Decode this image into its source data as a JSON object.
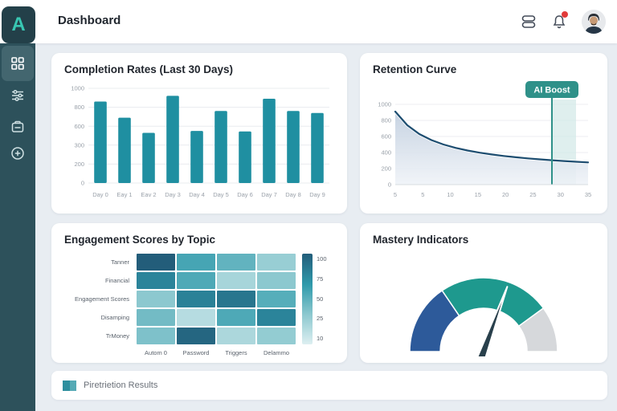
{
  "app": {
    "logo_letter": "A",
    "accent": "#1f8fa1",
    "sidebar_color": "#2d515b"
  },
  "header": {
    "title": "Dashboard",
    "icons": [
      {
        "name": "database-icon"
      },
      {
        "name": "bell-icon",
        "has_notification": true
      },
      {
        "name": "avatar"
      }
    ]
  },
  "sidebar": {
    "items": [
      {
        "name": "dashboard",
        "icon": "grid-icon",
        "active": true
      },
      {
        "name": "controls",
        "icon": "sliders-icon",
        "active": false
      },
      {
        "name": "documents",
        "icon": "document-icon",
        "active": false
      },
      {
        "name": "add",
        "icon": "plus-circle-icon",
        "active": false
      }
    ]
  },
  "cards": {
    "completion": {
      "title": "Completion Rates (Last 30 Days)"
    },
    "retention": {
      "title": "Retention Curve",
      "badge": "AI Boost"
    },
    "engagement": {
      "title": "Engagement Scores by Topic"
    },
    "mastery": {
      "title": "Mastery Indicators"
    }
  },
  "footer": {
    "label": "Piretrietion Results",
    "swatch_colors": [
      "#2e8f9e",
      "#55aab5"
    ]
  },
  "chart_data": [
    {
      "id": "completion",
      "type": "bar",
      "title": "Completion Rates (Last 30 Days)",
      "categories": [
        "Day 0",
        "Eay 1",
        "Eav 2",
        "Day 3",
        "Day 4",
        "Day 5",
        "Day 6",
        "Day 7",
        "Day 8",
        "Day 9"
      ],
      "values": [
        860,
        690,
        530,
        920,
        550,
        760,
        545,
        890,
        760,
        740
      ],
      "ylim": [
        0,
        1000
      ],
      "ytick_labels": [
        "1000",
        "800",
        "600",
        "300",
        "200",
        "0"
      ],
      "bar_color": "#1f8fa1",
      "grid": true
    },
    {
      "id": "retention",
      "type": "area",
      "title": "Retention Curve",
      "x": [
        5,
        7,
        9,
        11,
        13,
        15,
        17,
        19,
        21,
        23,
        25,
        27,
        29,
        31,
        33,
        35,
        37
      ],
      "y": [
        910,
        740,
        630,
        555,
        500,
        458,
        425,
        398,
        376,
        357,
        341,
        327,
        315,
        304,
        294,
        285,
        277
      ],
      "xlim": [
        5,
        37
      ],
      "ylim": [
        0,
        1000
      ],
      "xtick_labels": [
        "5",
        "5",
        "10",
        "15",
        "20",
        "25",
        "30",
        "35"
      ],
      "ytick_labels": [
        "1000",
        "800",
        "600",
        "400",
        "200",
        "0"
      ],
      "line_color": "#1d4d70",
      "fill_color_top": "#c3d0e0",
      "fill_color_bottom": "#eef2f7",
      "marker_x": 31,
      "band": [
        31,
        35
      ],
      "band_color": "#d4eae8",
      "marker_color": "#2f9189",
      "badge_label": "AI Boost",
      "badge_color": "#2f9189"
    },
    {
      "id": "engagement",
      "type": "heatmap",
      "rows": [
        "Tanner",
        "Financial",
        "Engagement Scores",
        "Disamping",
        "TrMoney"
      ],
      "cols": [
        "Autom 0",
        "Password",
        "Triggers",
        "Delammo"
      ],
      "values": [
        [
          100,
          58,
          48,
          28
        ],
        [
          78,
          55,
          22,
          33
        ],
        [
          33,
          80,
          86,
          52
        ],
        [
          42,
          16,
          55,
          78
        ],
        [
          38,
          95,
          20,
          30
        ]
      ],
      "colorbar_labels": [
        "100",
        "75",
        "50",
        "25",
        "10"
      ],
      "scale_stops": [
        {
          "t": 0.0,
          "c": "#ddeff1"
        },
        {
          "t": 0.33,
          "c": "#8cc8cf"
        },
        {
          "t": 0.66,
          "c": "#2f9aab"
        },
        {
          "t": 1.0,
          "c": "#235d7a"
        }
      ]
    },
    {
      "id": "mastery",
      "type": "gauge",
      "segments": [
        {
          "color": "#2d5a9a",
          "frac": 0.31
        },
        {
          "color": "#1e998e",
          "frac": 0.49
        },
        {
          "color": "#d6d8db",
          "frac": 0.2
        }
      ],
      "needle_angle_deg": 20,
      "needle_color": "#29404c"
    }
  ]
}
